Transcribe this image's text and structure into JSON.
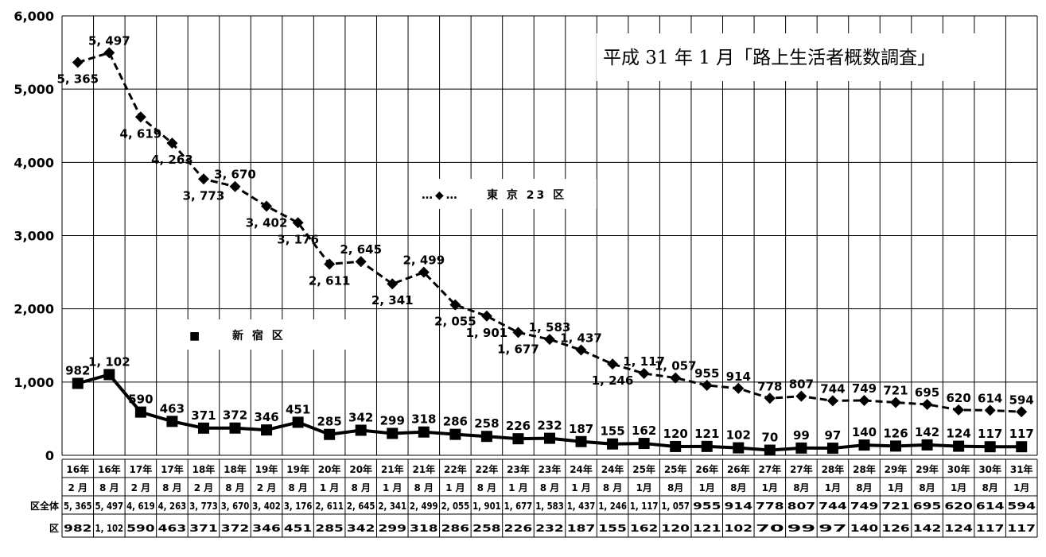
{
  "chart_data": {
    "type": "line",
    "title": "平成 31 年 1 月「路上生活者概数調査」",
    "ylim": [
      0,
      6000
    ],
    "yticks": [
      "0",
      "1,000",
      "2,000",
      "3,000",
      "4,000",
      "5,000",
      "6,000"
    ],
    "categories": [
      [
        "16年",
        "2 月"
      ],
      [
        "16年",
        "8 月"
      ],
      [
        "17年",
        "2 月"
      ],
      [
        "17年",
        "8 月"
      ],
      [
        "18年",
        "2 月"
      ],
      [
        "18年",
        "8 月"
      ],
      [
        "19年",
        "2 月"
      ],
      [
        "19年",
        "8 月"
      ],
      [
        "20年",
        "1 月"
      ],
      [
        "20年",
        "8 月"
      ],
      [
        "21年",
        "1 月"
      ],
      [
        "21年",
        "8 月"
      ],
      [
        "22年",
        "1 月"
      ],
      [
        "22年",
        "8 月"
      ],
      [
        "23年",
        "1 月"
      ],
      [
        "23年",
        "8 月"
      ],
      [
        "24年",
        "1 月"
      ],
      [
        "24年",
        "8 月"
      ],
      [
        "25年",
        "1月"
      ],
      [
        "25年",
        "8月"
      ],
      [
        "26年",
        "1月"
      ],
      [
        "26年",
        "8月"
      ],
      [
        "27年",
        "1月"
      ],
      [
        "27年",
        "8月"
      ],
      [
        "28年",
        "1月"
      ],
      [
        "28年",
        "8月"
      ],
      [
        "29年",
        "1月"
      ],
      [
        "29年",
        "8月"
      ],
      [
        "30年",
        "1月"
      ],
      [
        "30年",
        "8月"
      ],
      [
        "31年",
        "1月"
      ]
    ],
    "series": [
      {
        "name": "東京 23 区",
        "table_label": "区全体",
        "marker": "diamond",
        "style": "dashed",
        "values": [
          5365,
          5497,
          4619,
          4263,
          3773,
          3670,
          3402,
          3176,
          2611,
          2645,
          2341,
          2499,
          2055,
          1901,
          1677,
          1583,
          1437,
          1246,
          1117,
          1057,
          955,
          914,
          778,
          807,
          744,
          749,
          721,
          695,
          620,
          614,
          594
        ],
        "labels": [
          "5, 365",
          "5, 497",
          "4, 619",
          "4, 263",
          "3, 773",
          "3, 670",
          "3, 402",
          "3, 176",
          "2, 611",
          "2, 645",
          "2, 341",
          "2, 499",
          "2, 055",
          "1, 901",
          "1, 677",
          "1, 583",
          "1, 437",
          "1, 246",
          "1, 117",
          "1, 057",
          "955",
          "914",
          "778",
          "807",
          "744",
          "749",
          "721",
          "695",
          "620",
          "614",
          "594"
        ]
      },
      {
        "name": "新 宿 区",
        "table_label": "区",
        "marker": "square",
        "style": "solid",
        "values": [
          982,
          1102,
          590,
          463,
          371,
          372,
          346,
          451,
          285,
          342,
          299,
          318,
          286,
          258,
          226,
          232,
          187,
          155,
          162,
          120,
          121,
          102,
          70,
          99,
          97,
          140,
          126,
          142,
          124,
          117,
          117
        ],
        "labels": [
          "982",
          "1, 102",
          "590",
          "463",
          "371",
          "372",
          "346",
          "451",
          "285",
          "342",
          "299",
          "318",
          "286",
          "258",
          "226",
          "232",
          "187",
          "155",
          "162",
          "120",
          "121",
          "102",
          "70",
          "99",
          "97",
          "140",
          "126",
          "142",
          "124",
          "117",
          "117"
        ]
      }
    ],
    "legend": [
      {
        "marker": "…◆…",
        "text": "東 京 23 区"
      },
      {
        "marker": "■",
        "text": "新 宿 区"
      }
    ],
    "grid": true
  }
}
